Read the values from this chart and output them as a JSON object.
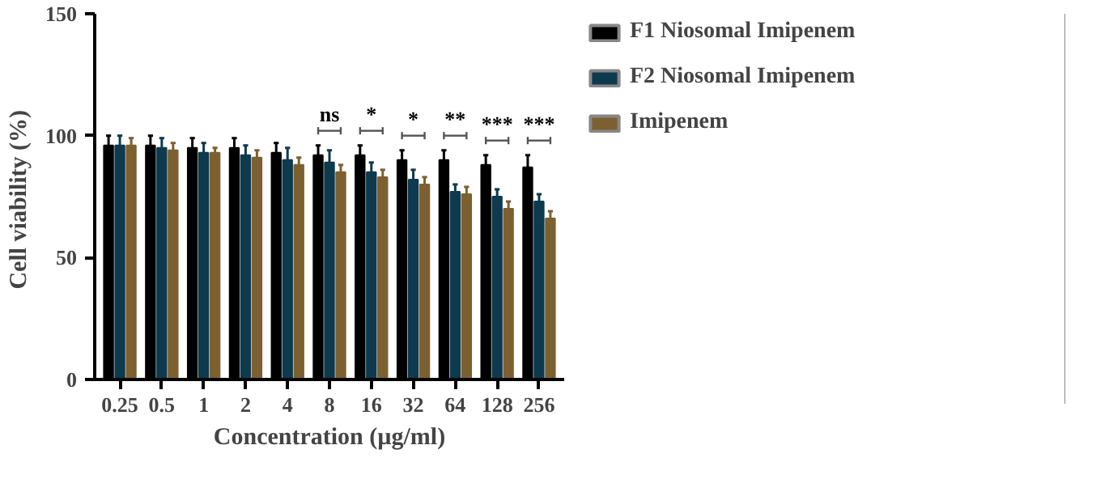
{
  "chart_data": {
    "type": "bar",
    "xlabel": "Concentration (µg/ml)",
    "ylabel": "Cell viability  (%)",
    "categories": [
      "0.25",
      "0.5",
      "1",
      "2",
      "4",
      "8",
      "16",
      "32",
      "64",
      "128",
      "256"
    ],
    "series": [
      {
        "name": "F1 Niosomal Imipenem",
        "color": "#000000",
        "values": [
          96,
          96,
          95,
          95,
          93,
          92,
          92,
          90,
          90,
          88,
          87
        ],
        "errors": [
          4,
          4,
          4,
          4,
          4,
          4,
          4,
          4,
          4,
          4,
          5
        ]
      },
      {
        "name": "F2 Niosomal Imipenem",
        "color": "#0e3a4e",
        "values": [
          96,
          95,
          93,
          92,
          90,
          89,
          85,
          82,
          77,
          75,
          73
        ],
        "errors": [
          4,
          4,
          4,
          4,
          5,
          5,
          4,
          4,
          3,
          3,
          3
        ]
      },
      {
        "name": "Imipenem",
        "color": "#7d6030",
        "values": [
          96,
          94,
          93,
          91,
          88,
          85,
          83,
          80,
          76,
          70,
          66
        ],
        "errors": [
          3,
          3,
          2,
          3,
          3,
          3,
          3,
          3,
          3,
          3,
          3
        ]
      }
    ],
    "ylim": [
      0,
      150
    ],
    "yticks": [
      0,
      50,
      100,
      150
    ],
    "grid": false,
    "legend": "right",
    "annotations": [
      "ns",
      "*",
      "*",
      "**",
      "***",
      "***"
    ]
  }
}
